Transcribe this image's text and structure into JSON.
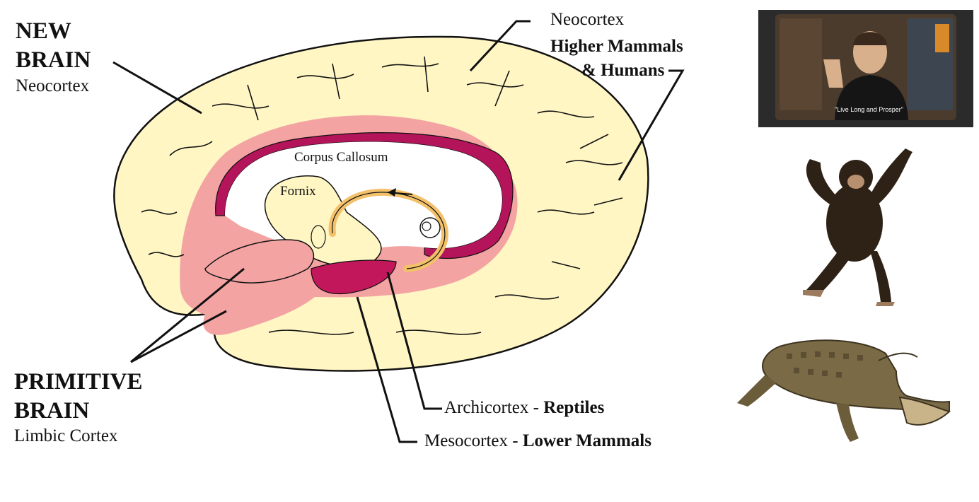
{
  "labels": {
    "new_brain_title_1": "NEW",
    "new_brain_title_2": "BRAIN",
    "new_brain_sub": "Neocortex",
    "neocortex_line": "Neocortex",
    "higher_mammals": "Higher Mammals",
    "and_humans": "& Humans",
    "corpus_callosum": "Corpus Callosum",
    "fornix": "Fornix",
    "primitive_title_1": "PRIMITIVE",
    "primitive_title_2": "BRAIN",
    "primitive_sub": "Limbic Cortex",
    "archicortex": "Archicortex - ",
    "reptiles": "Reptiles",
    "mesocortex": "Mesocortex - ",
    "lower_mammals": "Lower Mammals"
  },
  "photos": {
    "tv_caption": "\"Live Long and Prosper\""
  },
  "colors": {
    "neocortex": "#fff6c4",
    "limbic": "#f4a3a3",
    "corpus_band": "#b3145a",
    "fornix": "#f3c16a"
  }
}
